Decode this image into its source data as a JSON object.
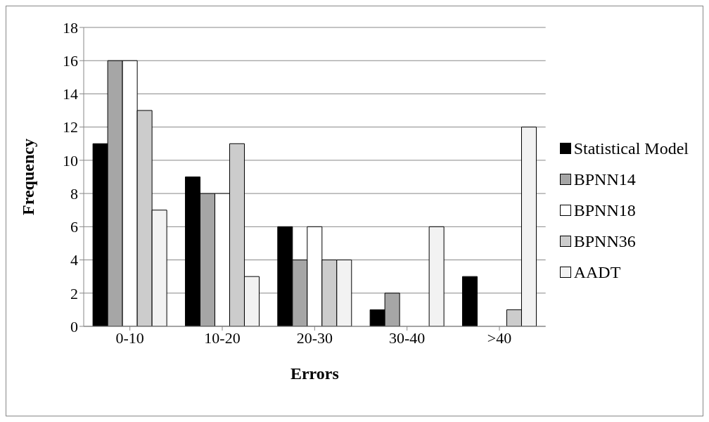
{
  "chart_data": {
    "type": "bar",
    "xlabel": "Errors",
    "ylabel": "Frequency",
    "categories": [
      "0-10",
      "10-20",
      "20-30",
      "30-40",
      ">40"
    ],
    "series": [
      {
        "name": "Statistical Model",
        "color": "#000000",
        "values": [
          11,
          9,
          6,
          1,
          3
        ]
      },
      {
        "name": "BPNN14",
        "color": "#a6a6a6",
        "values": [
          16,
          8,
          4,
          2,
          0
        ]
      },
      {
        "name": "BPNN18",
        "color": "#ffffff",
        "values": [
          16,
          8,
          6,
          0,
          0
        ]
      },
      {
        "name": "BPNN36",
        "color": "#cccccc",
        "values": [
          13,
          11,
          4,
          0,
          1
        ]
      },
      {
        "name": "AADT",
        "color": "#f2f2f2",
        "values": [
          7,
          3,
          4,
          6,
          12
        ]
      }
    ],
    "ylim": [
      0,
      18
    ],
    "yticks": [
      0,
      2,
      4,
      6,
      8,
      10,
      12,
      14,
      16,
      18
    ],
    "grid": "y",
    "legend": "right"
  }
}
